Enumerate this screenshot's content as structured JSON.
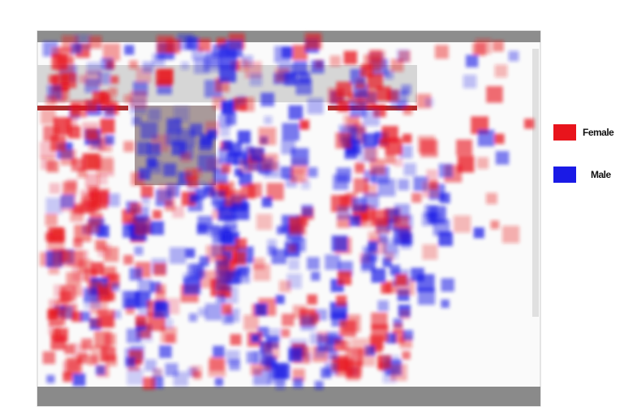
{
  "legend": {
    "items": [
      {
        "label": "Female",
        "color": "#e8141c"
      },
      {
        "label": "Male",
        "color": "#1a1ae6"
      }
    ]
  }
}
